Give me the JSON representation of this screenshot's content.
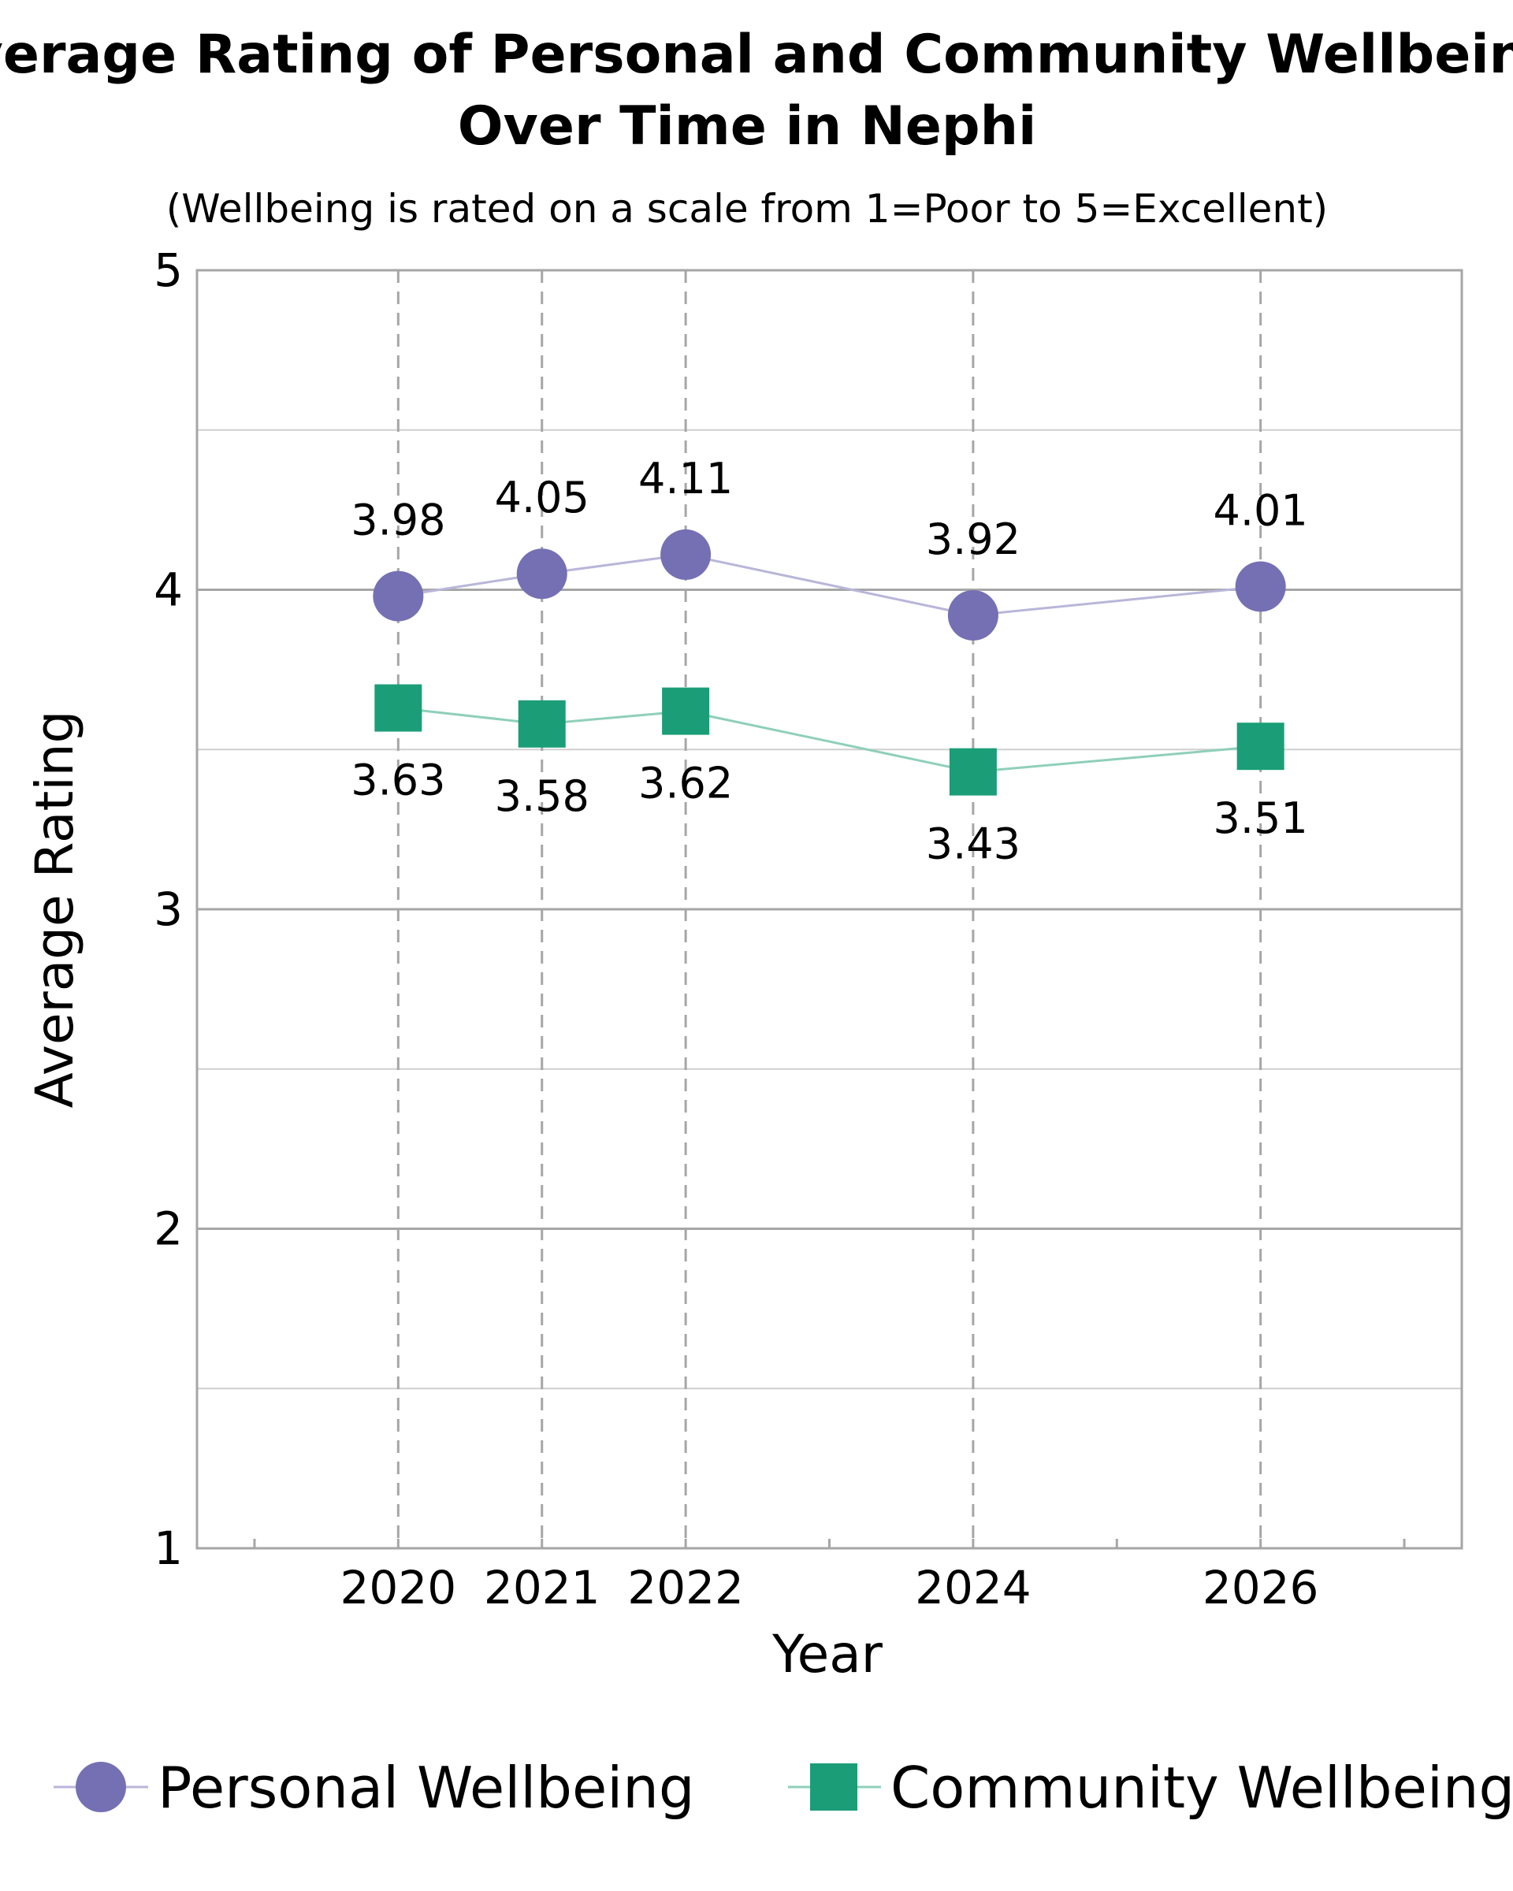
{
  "chart_data": {
    "type": "line",
    "title_line1": "Average Rating of Personal and Community Wellbeing",
    "title_line2": "Over Time in Nephi",
    "subtitle": "(Wellbeing is rated on a scale from 1=Poor to 5=Excellent)",
    "xlabel": "Year",
    "ylabel": "Average Rating",
    "x": [
      2020,
      2021,
      2022,
      2024,
      2026
    ],
    "x_tick_labels": [
      "2020",
      "2021",
      "2022",
      "2024",
      "2026"
    ],
    "xlim": [
      2018.6,
      2027.4
    ],
    "ylim": [
      1,
      5
    ],
    "y_ticks": [
      1,
      2,
      3,
      4,
      5
    ],
    "y_tick_labels": [
      "1",
      "2",
      "3",
      "4",
      "5"
    ],
    "grid": true,
    "legend_position": "bottom",
    "series": [
      {
        "name": "Personal Wellbeing",
        "marker": "circle",
        "color": "#7570b3",
        "line_color": "#b9b6d9",
        "values": [
          3.98,
          4.05,
          4.11,
          3.92,
          4.01
        ],
        "labels": [
          "3.98",
          "4.05",
          "4.11",
          "3.92",
          "4.01"
        ]
      },
      {
        "name": "Community Wellbeing",
        "marker": "square",
        "color": "#1b9e77",
        "line_color": "#8fcfbb",
        "values": [
          3.63,
          3.58,
          3.62,
          3.43,
          3.51
        ],
        "labels": [
          "3.63",
          "3.58",
          "3.62",
          "3.43",
          "3.51"
        ]
      }
    ]
  }
}
